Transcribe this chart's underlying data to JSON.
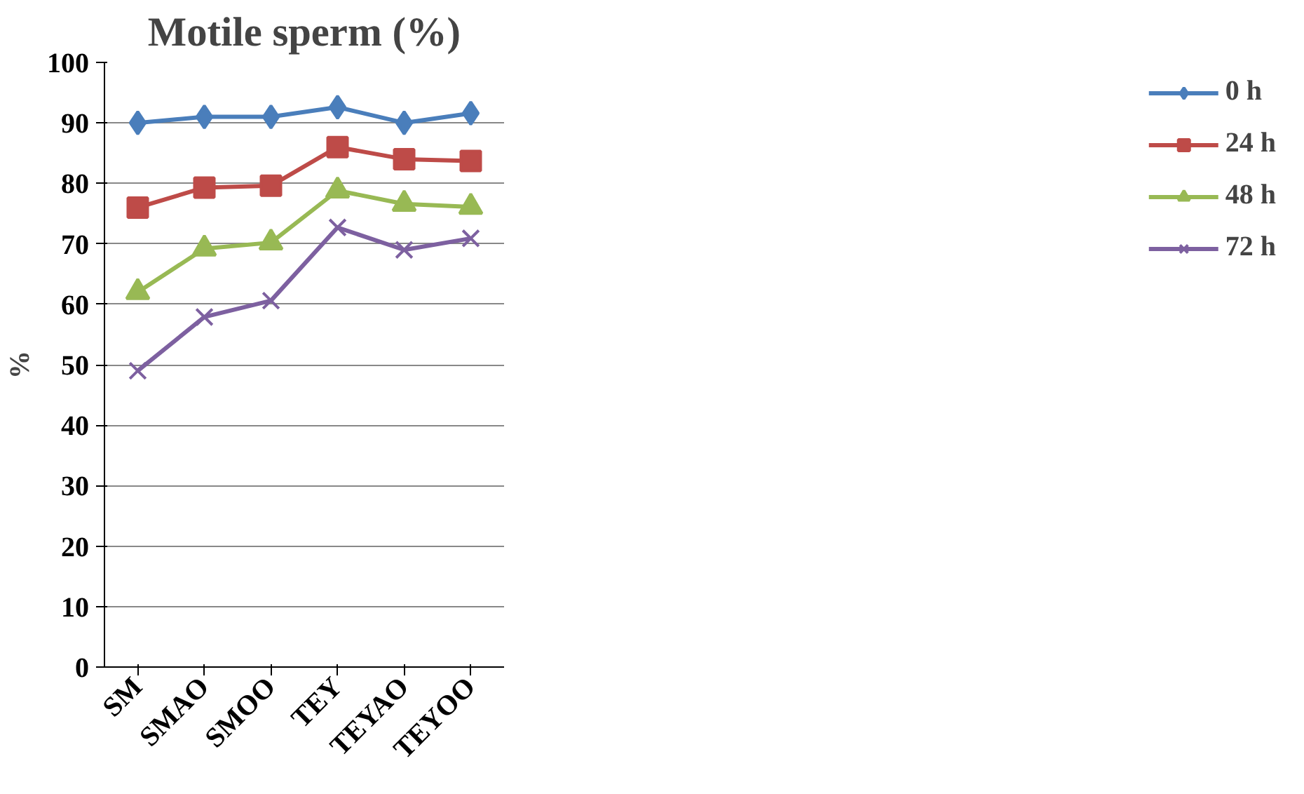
{
  "chart_data": {
    "type": "line",
    "title": "Motile sperm (%)",
    "ylabel": "%",
    "categories": [
      "SM",
      "SMAO",
      "SMOO",
      "TEY",
      "TEYAO",
      "TEYOO"
    ],
    "ylim": [
      0,
      100
    ],
    "yticks": [
      0,
      10,
      20,
      30,
      40,
      50,
      60,
      70,
      80,
      90,
      100
    ],
    "grid": "y",
    "legend": "right",
    "line_style": "solid",
    "series": [
      {
        "name": "0 h",
        "color": "#4a7ebb",
        "marker": "diamond",
        "values": [
          90,
          91,
          91,
          92.6,
          90,
          91.6
        ]
      },
      {
        "name": "24 h",
        "color": "#be4b48",
        "marker": "square",
        "values": [
          76,
          79.3,
          79.6,
          86,
          84,
          83.7
        ]
      },
      {
        "name": "48 h",
        "color": "#98b954",
        "marker": "triangle",
        "values": [
          62,
          69.2,
          70.2,
          78.8,
          76.6,
          76.1
        ]
      },
      {
        "name": "72 h",
        "color": "#7d60a0",
        "marker": "cross",
        "values": [
          49,
          57.9,
          60.6,
          72.7,
          69,
          70.9
        ]
      }
    ]
  }
}
